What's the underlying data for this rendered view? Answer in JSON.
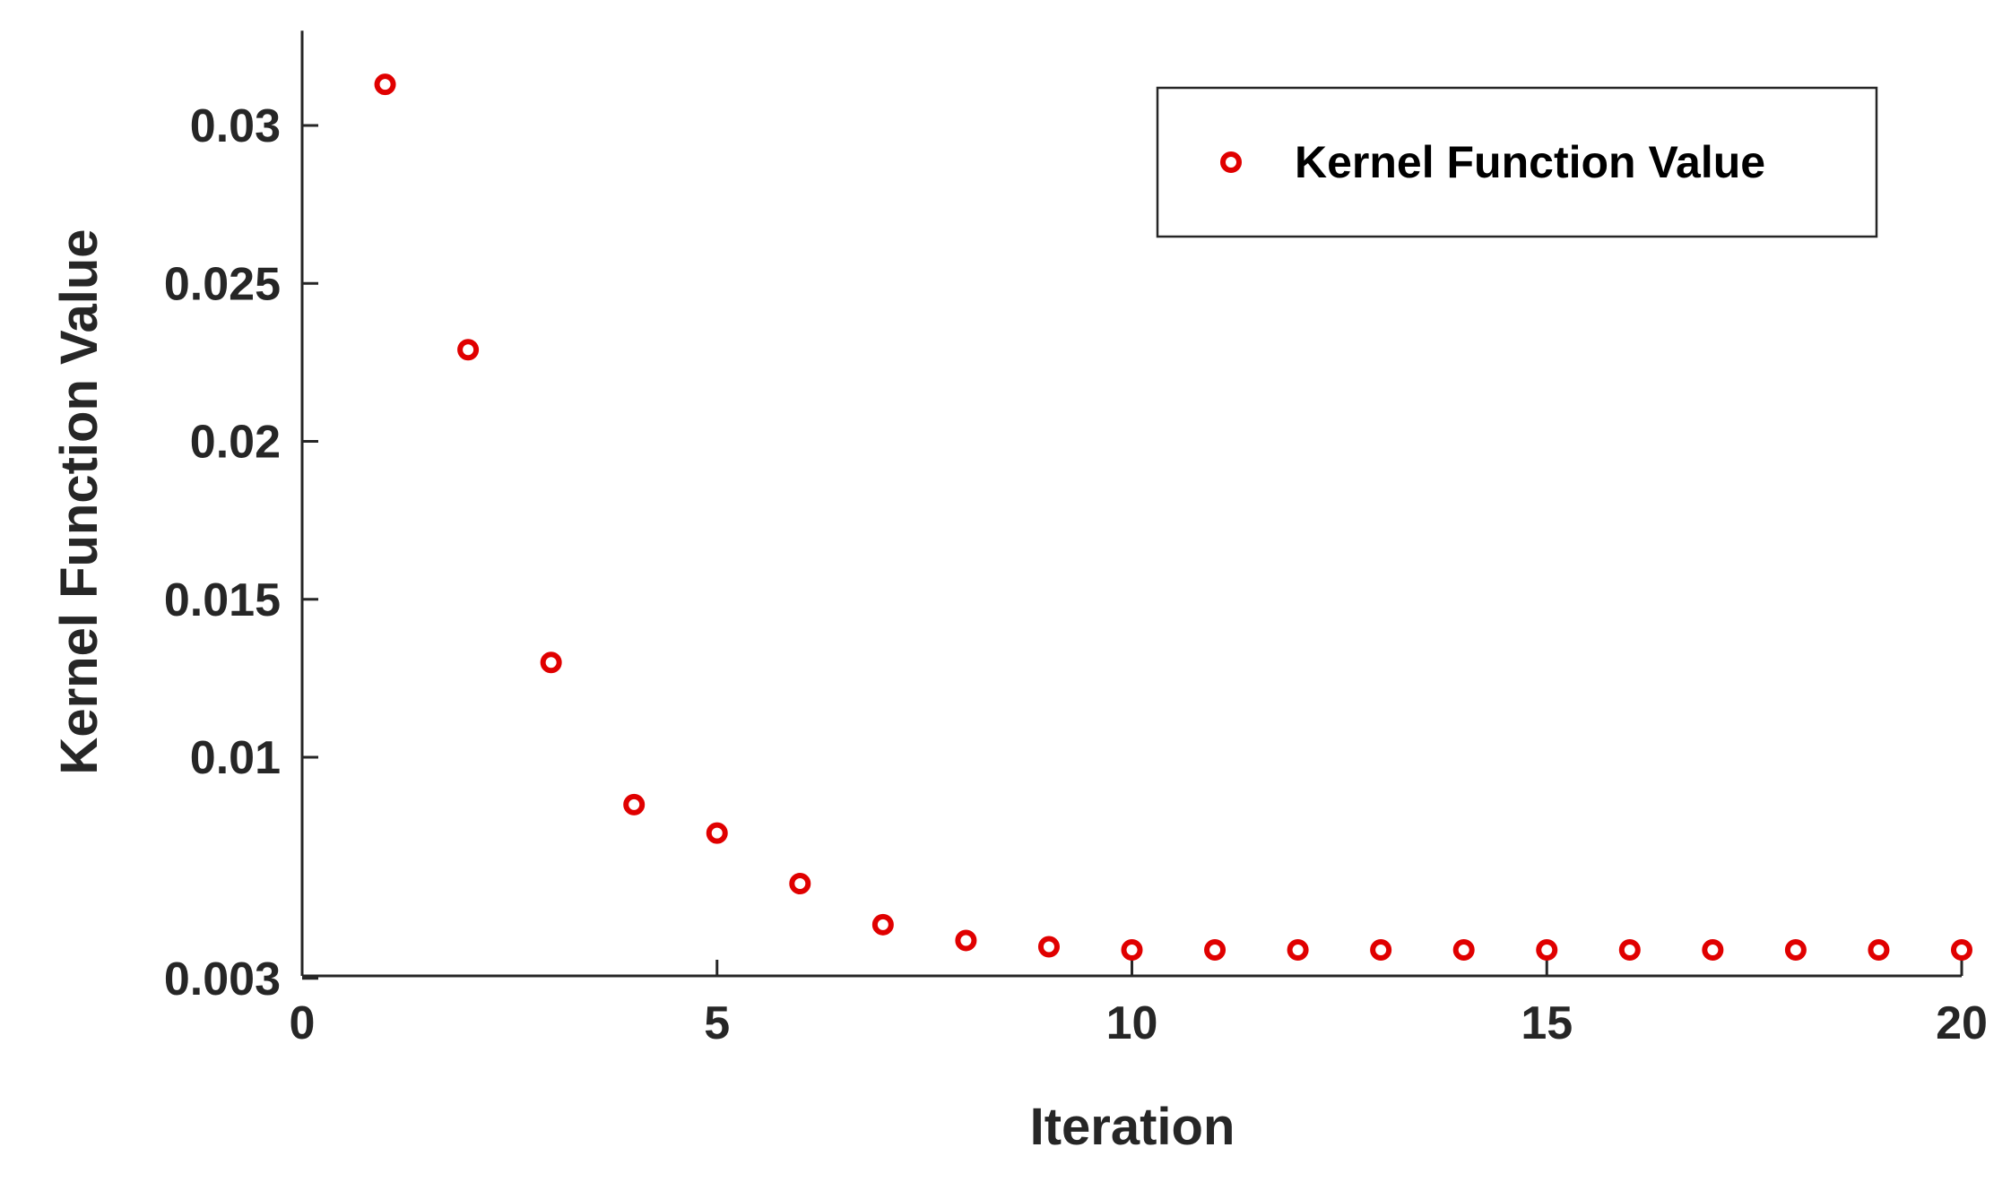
{
  "chart_data": {
    "type": "scatter",
    "xlabel": "Iteration",
    "ylabel": "Kernel Function Value",
    "xlim": [
      0,
      20
    ],
    "ylim": [
      0.003,
      0.033
    ],
    "xticks": [
      0,
      5,
      10,
      15,
      20
    ],
    "xtick_labels": [
      "0",
      "5",
      "10",
      "15",
      "20"
    ],
    "yticks": [
      0.003,
      0.01,
      0.015,
      0.02,
      0.025,
      0.03
    ],
    "ytick_labels": [
      "0.003",
      "0.01",
      "0.015",
      "0.02",
      "0.025",
      "0.03"
    ],
    "grid": false,
    "legend": {
      "position": "top-right",
      "entries": [
        "Kernel Function Value"
      ]
    },
    "marker_color": "#e00000",
    "series": [
      {
        "name": "Kernel Function Value",
        "x": [
          1,
          2,
          3,
          4,
          5,
          6,
          7,
          8,
          9,
          10,
          11,
          12,
          13,
          14,
          15,
          16,
          17,
          18,
          19,
          20
        ],
        "y": [
          0.0313,
          0.0229,
          0.013,
          0.0085,
          0.0076,
          0.006,
          0.0047,
          0.0042,
          0.004,
          0.0039,
          0.0039,
          0.0039,
          0.0039,
          0.0039,
          0.0039,
          0.0039,
          0.0039,
          0.0039,
          0.0039,
          0.0039
        ]
      }
    ]
  }
}
